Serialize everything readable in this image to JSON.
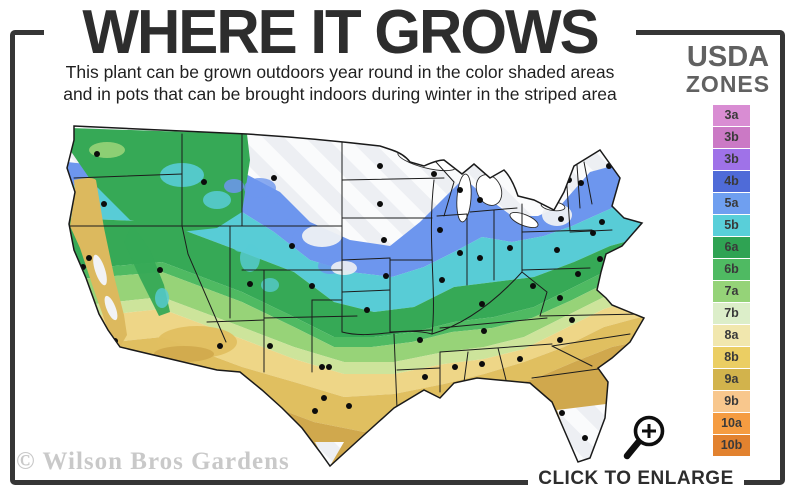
{
  "header": {
    "title": "WHERE IT GROWS",
    "subtitle_line1": "This plant can be grown outdoors year round in the color shaded areas",
    "subtitle_line2": "and in pots that can be brought indoors during winter in the striped area"
  },
  "legend": {
    "title_line1": "USDA",
    "title_line2": "ZONES",
    "zones": [
      {
        "label": "3a",
        "color": "#d98dd3"
      },
      {
        "label": "3b",
        "color": "#cb79c5"
      },
      {
        "label": "3b",
        "color": "#9f72e8"
      },
      {
        "label": "4b",
        "color": "#4f6bd8"
      },
      {
        "label": "5a",
        "color": "#6f9ff0"
      },
      {
        "label": "5b",
        "color": "#59cfd9"
      },
      {
        "label": "6a",
        "color": "#2fa353"
      },
      {
        "label": "6b",
        "color": "#4fba62"
      },
      {
        "label": "7a",
        "color": "#95d378"
      },
      {
        "label": "7b",
        "color": "#dceec9"
      },
      {
        "label": "8a",
        "color": "#f1e7ae"
      },
      {
        "label": "8b",
        "color": "#ebce63"
      },
      {
        "label": "9a",
        "color": "#d2b34c"
      },
      {
        "label": "9b",
        "color": "#f8c78d"
      },
      {
        "label": "10a",
        "color": "#f59c41"
      },
      {
        "label": "10b",
        "color": "#e2822f"
      }
    ]
  },
  "map": {
    "watermark": "© Wilson Bros Gardens",
    "description": "USDA hardiness zone map of the continental United States with striped area in the north"
  },
  "footer": {
    "enlarge_label": "CLICK TO ENLARGE"
  },
  "colors": {
    "frame": "#363636",
    "title_text": "#2d2d2d",
    "legend_title": "#616161",
    "watermark": "#c9c9c9",
    "map_striped_area": "#edeff3",
    "map_blue": "#6d96ee",
    "map_teal": "#58ccd6",
    "map_green": "#36a956",
    "map_yellow": "#eed687",
    "map_tan": "#d0a84d"
  }
}
